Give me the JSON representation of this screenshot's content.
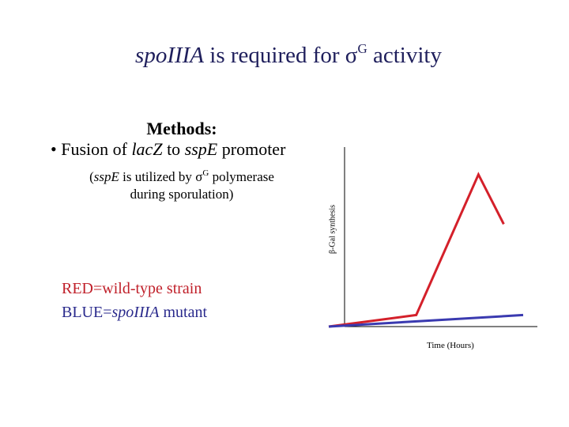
{
  "slide": {
    "title_italic": "spo",
    "title_italic2": "IIIA",
    "title_rest": " is required for ",
    "title_sigma": "σ",
    "title_sup": "G",
    "title_end": " activity"
  },
  "methods": {
    "heading": "Methods:",
    "bullet_prefix": "• Fusion of ",
    "bullet_gene1": "lacZ",
    "bullet_mid": " to ",
    "bullet_gene2": "sspE",
    "bullet_end": " promoter",
    "note_open": "(",
    "note_gene": "sspE",
    "note_mid": " is utilized by ",
    "note_sigma": "σ",
    "note_sup": "G",
    "note_end": " polymerase",
    "note_line2": "during sporulation)"
  },
  "legend": {
    "red_text": "RED=wild-type strain",
    "blue_prefix": "BLUE=",
    "blue_italic": "spoIIIA",
    "blue_suffix": " mutant",
    "red_color": "#d4202a",
    "blue_color": "#3a3ab0"
  },
  "chart_data": {
    "type": "line",
    "xlabel": "Time (Hours)",
    "ylabel": "β-Gal synthesis",
    "series": [
      {
        "name": "RED=wild-type strain",
        "color": "#d4202a",
        "points": [
          [
            0,
            0
          ],
          [
            0.45,
            0.07
          ],
          [
            0.77,
            0.92
          ],
          [
            0.9,
            0.62
          ]
        ]
      },
      {
        "name": "BLUE=spoIIIA mutant",
        "color": "#3a3ab0",
        "points": [
          [
            0,
            0
          ],
          [
            1.0,
            0.07
          ]
        ]
      }
    ],
    "xlim": [
      0,
      1
    ],
    "ylim": [
      0,
      1
    ],
    "grid": false
  }
}
